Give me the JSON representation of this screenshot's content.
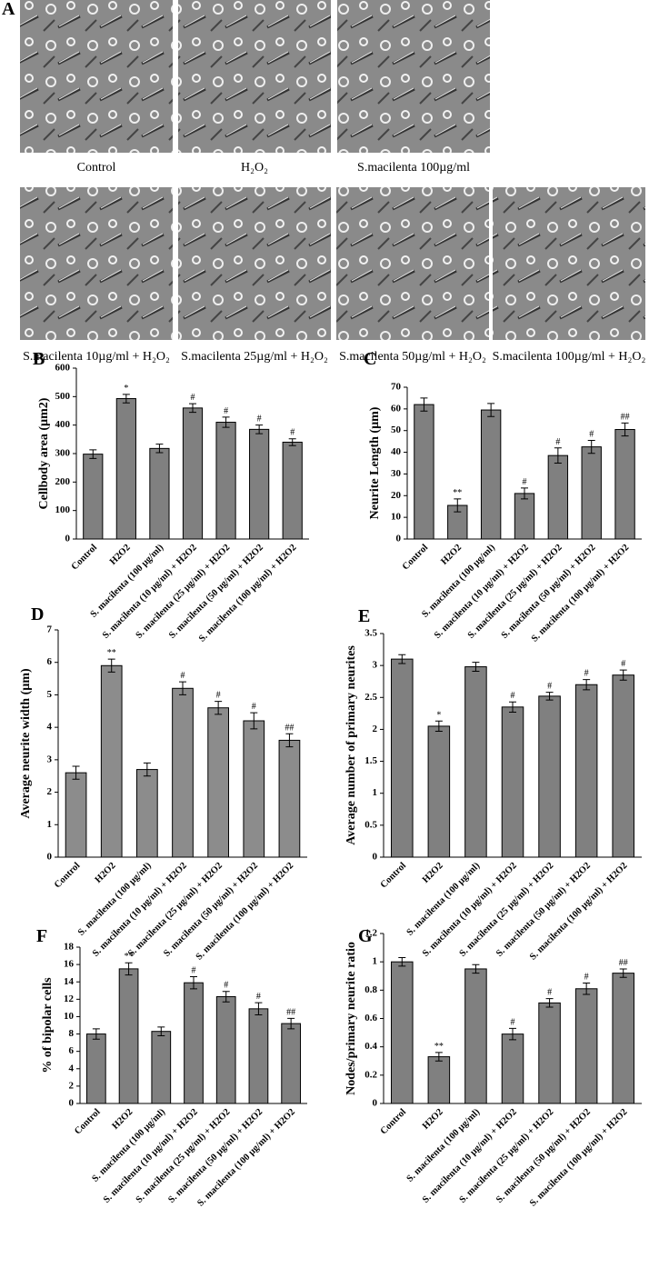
{
  "panels": {
    "A": {
      "label": "A",
      "images": [
        {
          "caption": "Control"
        },
        {
          "caption": "H₂O₂"
        },
        {
          "caption": "S.macilenta 100µg/ml"
        },
        {
          "caption": "S.macilenta 10µg/ml + H₂O₂"
        },
        {
          "caption": "S.macilenta 25µg/ml + H₂O₂"
        },
        {
          "caption": "S.macilenta 50µg/ml + H₂O₂"
        },
        {
          "caption": "S.macilenta 100µg/ml + H₂O₂"
        }
      ]
    }
  },
  "chart_data": [
    {
      "type": "bar",
      "panel": "B",
      "y_label": "Cellbody area (µm2)",
      "color": "#808080",
      "categories": [
        "Control",
        "H2O2",
        "S. macilenta (100 µg/ml)",
        "S. macilenta (10 µg/ml) + H2O2",
        "S. macilenta (25 µg/ml) + H2O2",
        "S. macilenta (50 µg/ml) + H2O2",
        "S. macilenta (100 µg/ml) + H2O2"
      ],
      "values": [
        298,
        493,
        318,
        460,
        410,
        385,
        340
      ],
      "errors": [
        15,
        15,
        15,
        15,
        18,
        15,
        12
      ],
      "annotations": [
        null,
        "*",
        null,
        "#",
        "#",
        "#",
        "#"
      ],
      "ylim": [
        0,
        600
      ],
      "yticks": [
        0,
        100,
        200,
        300,
        400,
        500,
        600
      ]
    },
    {
      "type": "bar",
      "panel": "C",
      "y_label": "Neurite Length (µm)",
      "color": "#808080",
      "categories": [
        "Control",
        "H2O2",
        "S. macilenta (100 µg/ml)",
        "S. macilenta (10 µg/ml) + H2O2",
        "S. macilenta (25 µg/ml) + H2O2",
        "S. macilenta (50 µg/ml) + H2O2",
        "S. macilenta (100 µg/ml) + H2O2"
      ],
      "values": [
        62,
        15.5,
        59.5,
        21,
        38.5,
        42.5,
        50.5
      ],
      "errors": [
        3,
        3,
        3,
        2.5,
        3.5,
        3,
        3
      ],
      "annotations": [
        null,
        "**",
        null,
        "#",
        "#",
        "#",
        "##"
      ],
      "ylim": [
        0,
        70
      ],
      "yticks": [
        0,
        10,
        20,
        30,
        40,
        50,
        60,
        70
      ]
    },
    {
      "type": "bar",
      "panel": "D",
      "y_label": "Average neurite width (µm)",
      "color": "#8c8c8c",
      "categories": [
        "Control",
        "H2O2",
        "S. macilenta (100 µg/ml)",
        "S. macilenta (10 µg/ml) + H2O2",
        "S. macilenta (25 µg/ml) + H2O2",
        "S. macilenta (50 µg/ml) + H2O2",
        "S. macilenta (100 µg/ml) + H2O2"
      ],
      "values": [
        2.6,
        5.9,
        2.7,
        5.2,
        4.6,
        4.2,
        3.6
      ],
      "errors": [
        0.2,
        0.2,
        0.2,
        0.2,
        0.2,
        0.25,
        0.2
      ],
      "annotations": [
        null,
        "**",
        null,
        "#",
        "#",
        "#",
        "##"
      ],
      "ylim": [
        0,
        7
      ],
      "yticks": [
        0,
        1,
        2,
        3,
        4,
        5,
        6,
        7
      ]
    },
    {
      "type": "bar",
      "panel": "E",
      "y_label": "Average number of primary neurites",
      "color": "#808080",
      "categories": [
        "Control",
        "H2O2",
        "S. macilenta (100 µg/ml)",
        "S. macilenta (10 µg/ml) + H2O2",
        "S. macilenta (25 µg/ml) + H2O2",
        "S. macilenta (50 µg/ml) + H2O2",
        "S. macilenta (100 µg/ml) + H2O2"
      ],
      "values": [
        3.1,
        2.05,
        2.98,
        2.35,
        2.52,
        2.7,
        2.85
      ],
      "errors": [
        0.07,
        0.08,
        0.07,
        0.08,
        0.06,
        0.08,
        0.08
      ],
      "annotations": [
        null,
        "*",
        null,
        "#",
        "#",
        "#",
        "#"
      ],
      "ylim": [
        0,
        3.5
      ],
      "yticks": [
        0,
        0.5,
        1,
        1.5,
        2,
        2.5,
        3,
        3.5
      ]
    },
    {
      "type": "bar",
      "panel": "F",
      "y_label": "% of bipolar cells",
      "color": "#808080",
      "categories": [
        "Control",
        "H2O2",
        "S. macilenta (100 µg/ml)",
        "S. macilenta (10 µg/ml) + H2O2",
        "S. macilenta (25 µg/ml) + H2O2",
        "S. macilenta (50 µg/ml) + H2O2",
        "S. macilenta (100 µg/ml) + H2O2"
      ],
      "values": [
        8,
        15.5,
        8.3,
        13.9,
        12.3,
        10.9,
        9.2
      ],
      "errors": [
        0.6,
        0.7,
        0.5,
        0.7,
        0.6,
        0.7,
        0.6
      ],
      "annotations": [
        null,
        "**",
        null,
        "#",
        "#",
        "#",
        "##"
      ],
      "ylim": [
        0,
        18
      ],
      "yticks": [
        0,
        2,
        4,
        6,
        8,
        10,
        12,
        14,
        16,
        18
      ]
    },
    {
      "type": "bar",
      "panel": "G",
      "y_label": "Nodes/primary neurite ratio",
      "color": "#808080",
      "categories": [
        "Control",
        "H2O2",
        "S. macilenta (100 µg/ml)",
        "S. macilenta (10 µg/ml) + H2O2",
        "S. macilenta (25 µg/ml) + H2O2",
        "S. macilenta (50 µg/ml) + H2O2",
        "S. macilenta (100 µg/ml) + H2O2"
      ],
      "values": [
        1,
        0.33,
        0.95,
        0.49,
        0.71,
        0.81,
        0.92
      ],
      "errors": [
        0.03,
        0.03,
        0.03,
        0.04,
        0.03,
        0.04,
        0.03
      ],
      "annotations": [
        null,
        "**",
        null,
        "#",
        "#",
        "#",
        "##"
      ],
      "ylim": [
        0,
        1.2
      ],
      "yticks": [
        0,
        0.2,
        0.4,
        0.6,
        0.8,
        1,
        1.2
      ]
    }
  ]
}
